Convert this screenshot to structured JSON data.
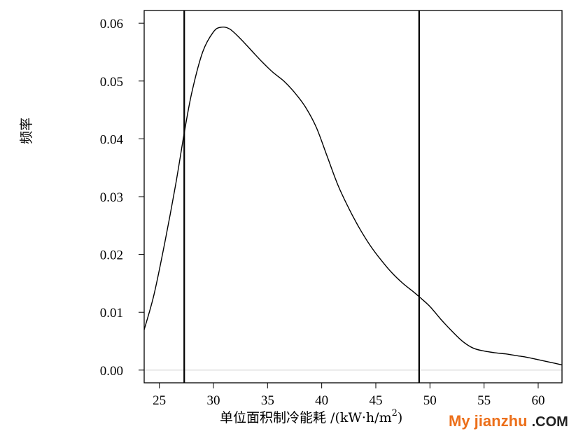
{
  "chart_data": {
    "type": "line",
    "title": "",
    "xlabel": "单位面积制冷能耗 /(kW·h/m²)",
    "xlabel_main": "单位面积制冷能耗 /(kW·h/m",
    "xlabel_sup": "2",
    "xlabel_close": ")",
    "ylabel": "频率",
    "xlim": [
      23.6,
      62.2
    ],
    "ylim": [
      -0.0022,
      0.0622
    ],
    "xticks": [
      25,
      30,
      35,
      40,
      45,
      50,
      55,
      60
    ],
    "yticks": [
      0.0,
      0.01,
      0.02,
      0.03,
      0.04,
      0.05,
      0.06
    ],
    "ytick_labels": [
      "0.00",
      "0.01",
      "0.02",
      "0.03",
      "0.04",
      "0.05",
      "0.06"
    ],
    "vertical_lines": [
      27.3,
      49.0
    ],
    "baseline": 0.0,
    "grid": false,
    "series": [
      {
        "x": [
          23.6,
          24.5,
          25.5,
          26.5,
          27.3,
          28.0,
          29.0,
          30.0,
          30.7,
          31.5,
          32.5,
          33.5,
          34.5,
          35.5,
          36.5,
          37.5,
          38.5,
          39.5,
          40.5,
          41.5,
          42.5,
          43.5,
          44.5,
          45.5,
          46.5,
          47.5,
          48.5,
          49.0,
          50.0,
          51.0,
          52.0,
          53.0,
          54.0,
          55.0,
          56.0,
          57.0,
          58.0,
          59.0,
          60.0,
          61.0,
          62.2
        ],
        "values": [
          0.007,
          0.013,
          0.022,
          0.032,
          0.041,
          0.048,
          0.055,
          0.0585,
          0.0593,
          0.059,
          0.0573,
          0.0553,
          0.0533,
          0.0515,
          0.05,
          0.048,
          0.0455,
          0.042,
          0.037,
          0.032,
          0.028,
          0.0245,
          0.0215,
          0.019,
          0.0168,
          0.015,
          0.0135,
          0.0127,
          0.011,
          0.0088,
          0.0068,
          0.005,
          0.0038,
          0.0033,
          0.003,
          0.0028,
          0.0025,
          0.0022,
          0.0018,
          0.0014,
          0.0009
        ]
      }
    ]
  },
  "watermark": {
    "main": "My jianzhu",
    "suffix": ".COM"
  }
}
